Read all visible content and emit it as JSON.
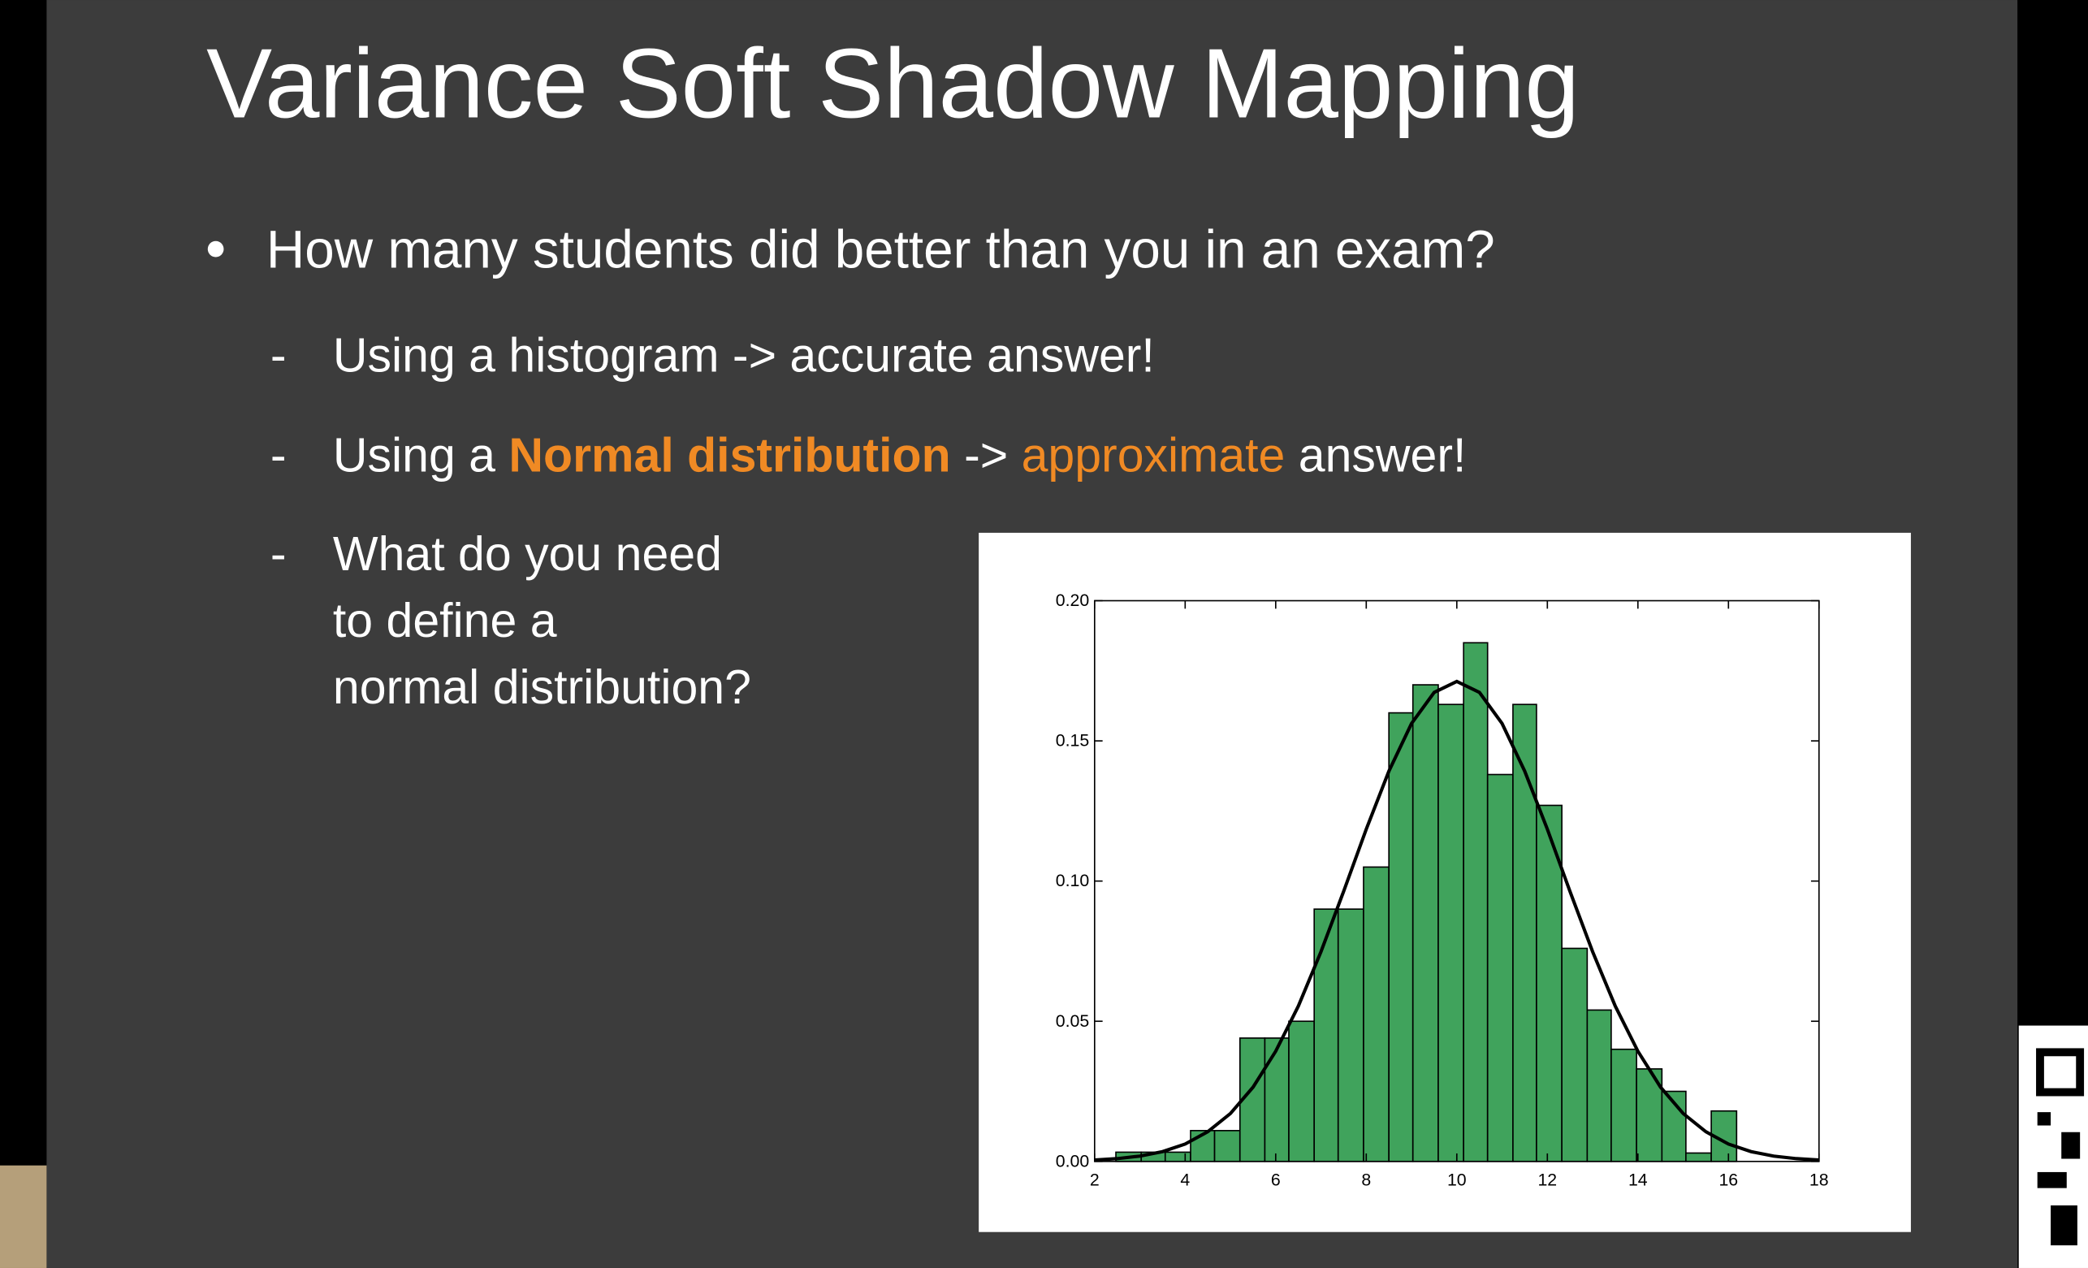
{
  "slide": {
    "title": "Variance Soft Shadow Mapping",
    "bullet": "How many students did better than you in an exam?",
    "subbullets": [
      {
        "parts": [
          "Using a histogram -> accurate answer!"
        ]
      },
      {
        "parts": [
          "Using a ",
          "Normal distribution",
          " -> ",
          "approximate",
          " answer!"
        ]
      },
      {
        "parts": [
          "What do you need",
          "to define a",
          "normal distribution?"
        ]
      }
    ]
  },
  "chart_data": {
    "type": "histogram",
    "bins": [
      2.47,
      3.03,
      3.56,
      4.12,
      4.65,
      5.21,
      5.76,
      6.29,
      6.85,
      7.38,
      7.94,
      8.5,
      9.03,
      9.59,
      10.15,
      10.68,
      11.24,
      11.76,
      12.32,
      12.88,
      13.41,
      13.97,
      14.53,
      15.06,
      15.62,
      16.18
    ],
    "values": [
      0.0033,
      0.0033,
      0.0033,
      0.011,
      0.011,
      0.044,
      0.044,
      0.05,
      0.09,
      0.09,
      0.105,
      0.16,
      0.17,
      0.163,
      0.185,
      0.138,
      0.163,
      0.127,
      0.076,
      0.054,
      0.04,
      0.033,
      0.025,
      0.003,
      0.018
    ],
    "color": "#40a35c",
    "curve": {
      "color": "#000000",
      "x": [
        2,
        2.5,
        3,
        3.5,
        4,
        4.5,
        5,
        5.5,
        6,
        6.5,
        7,
        7.5,
        8,
        8.5,
        9,
        9.5,
        10,
        10.5,
        11,
        11.5,
        12,
        12.5,
        13,
        13.5,
        14,
        14.5,
        15,
        15.5,
        16,
        16.5,
        17,
        17.5,
        18
      ],
      "values": [
        0.0005,
        0.001,
        0.0019,
        0.0035,
        0.0062,
        0.0106,
        0.0171,
        0.0265,
        0.0393,
        0.0554,
        0.0748,
        0.0963,
        0.1185,
        0.1392,
        0.1562,
        0.1673,
        0.1712,
        0.1673,
        0.1562,
        0.1392,
        0.1185,
        0.0963,
        0.0748,
        0.0554,
        0.0393,
        0.0265,
        0.0171,
        0.0106,
        0.0062,
        0.0035,
        0.0019,
        0.001,
        0.0005
      ]
    },
    "xlim": [
      2,
      18
    ],
    "ylim": [
      0,
      0.2
    ],
    "xticks": [
      2,
      4,
      6,
      8,
      10,
      12,
      14,
      16,
      18
    ],
    "yticks": [
      {
        "value": 0,
        "label": "0.00"
      },
      0.05,
      {
        "value": 0.1,
        "label": "0.10"
      },
      0.15,
      {
        "value": 0.2,
        "label": "0.20"
      }
    ]
  }
}
